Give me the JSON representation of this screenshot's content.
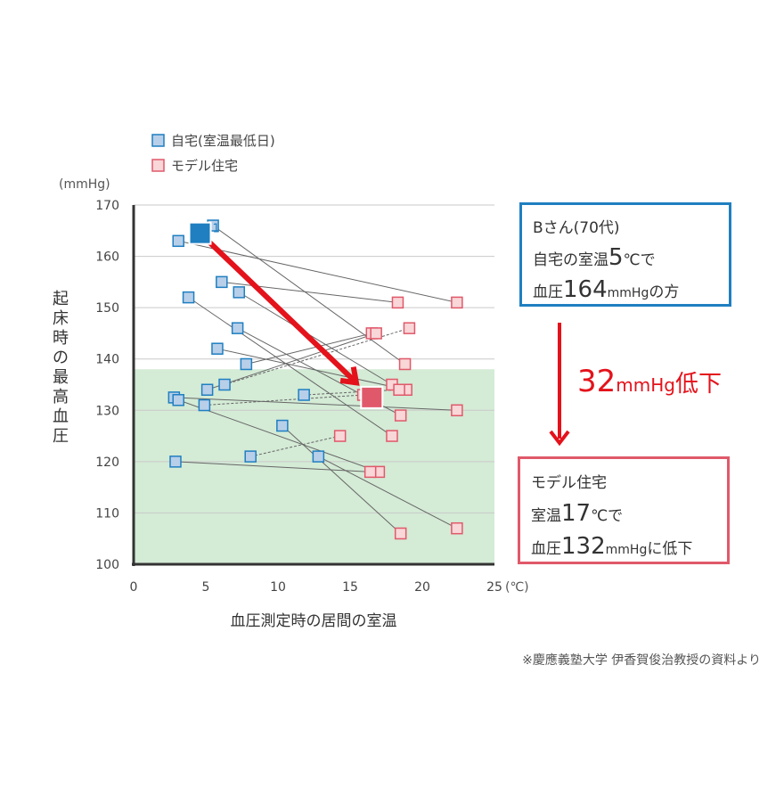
{
  "legend": {
    "home": "自宅(室温最低日)",
    "model": "モデル住宅"
  },
  "chart_data": {
    "type": "scatter",
    "y_unit": "(mmHg)",
    "x_unit": "(℃)",
    "ylabel": "起床時の最高血圧",
    "xlabel": "血圧測定時の居間の室温",
    "xlim": [
      0,
      25
    ],
    "ylim": [
      100,
      170
    ],
    "x_ticks": [
      0,
      5,
      10,
      15,
      20,
      25
    ],
    "y_ticks": [
      100,
      110,
      120,
      130,
      140,
      150,
      160,
      170
    ],
    "grid": true,
    "legend_position": "top-left",
    "reference_band": {
      "from": 100,
      "to": 138,
      "color": "#d4ebd6"
    },
    "colors": {
      "home": "#1f7fc1",
      "model": "#e0596a",
      "arrow": "#e4121b"
    },
    "pairs": [
      {
        "home": [
          3.1,
          163
        ],
        "model": [
          22.4,
          151
        ],
        "dashed": false
      },
      {
        "home": [
          6.1,
          155
        ],
        "model": [
          18.3,
          151
        ],
        "dashed": false
      },
      {
        "home": [
          5.5,
          166
        ],
        "model": [
          18.8,
          139
        ],
        "dashed": false
      },
      {
        "home": [
          3.8,
          152
        ],
        "model": [
          17.9,
          125
        ],
        "dashed": false
      },
      {
        "home": [
          7.3,
          153
        ],
        "model": [
          17.9,
          135
        ],
        "dashed": false
      },
      {
        "home": [
          7.2,
          146
        ],
        "model": [
          18.5,
          129
        ],
        "dashed": false
      },
      {
        "home": [
          5.8,
          142
        ],
        "model": [
          18.9,
          134
        ],
        "dashed": false
      },
      {
        "home": [
          7.8,
          139
        ],
        "model": [
          16.5,
          145
        ],
        "dashed": false
      },
      {
        "home": [
          6.3,
          135
        ],
        "model": [
          19.1,
          146
        ],
        "dashed": true
      },
      {
        "home": [
          5.1,
          134
        ],
        "model": [
          16.8,
          145
        ],
        "dashed": false
      },
      {
        "home": [
          2.8,
          132.5
        ],
        "model": [
          22.4,
          130
        ],
        "dashed": false
      },
      {
        "home": [
          3.1,
          132
        ],
        "model": [
          17.0,
          118
        ],
        "dashed": false
      },
      {
        "home": [
          4.9,
          131
        ],
        "model": [
          15.9,
          133
        ],
        "dashed": true
      },
      {
        "home": [
          11.8,
          133
        ],
        "model": [
          18.4,
          134
        ],
        "dashed": true
      },
      {
        "home": [
          10.3,
          127
        ],
        "model": [
          18.5,
          106
        ],
        "dashed": false
      },
      {
        "home": [
          8.1,
          121
        ],
        "model": [
          14.3,
          125
        ],
        "dashed": true
      },
      {
        "home": [
          12.8,
          121
        ],
        "model": [
          22.4,
          107
        ],
        "dashed": false
      },
      {
        "home": [
          2.9,
          120
        ],
        "model": [
          16.4,
          118
        ],
        "dashed": false
      }
    ],
    "highlight": {
      "home": [
        4.6,
        164.5
      ],
      "model": [
        16.5,
        132.5
      ],
      "home_label": "1"
    }
  },
  "card_b": {
    "line1": "Bさん(70代)",
    "line2_pre": "自宅の室温",
    "line2_num": "5",
    "line2_post": "℃で",
    "line3_pre": "血圧",
    "line3_num": "164",
    "line3_unit": "mmHg",
    "line3_post": "の方"
  },
  "drop": {
    "num": "32",
    "unit": "mmHg",
    "text": "低下"
  },
  "card_m": {
    "line1": "モデル住宅",
    "line2_pre": "室温",
    "line2_num": "17",
    "line2_post": "℃で",
    "line3_pre": "血圧",
    "line3_num": "132",
    "line3_unit": "mmHg",
    "line3_post": "に低下"
  },
  "source": "※慶應義塾大学 伊香賀俊治教授の資料より"
}
